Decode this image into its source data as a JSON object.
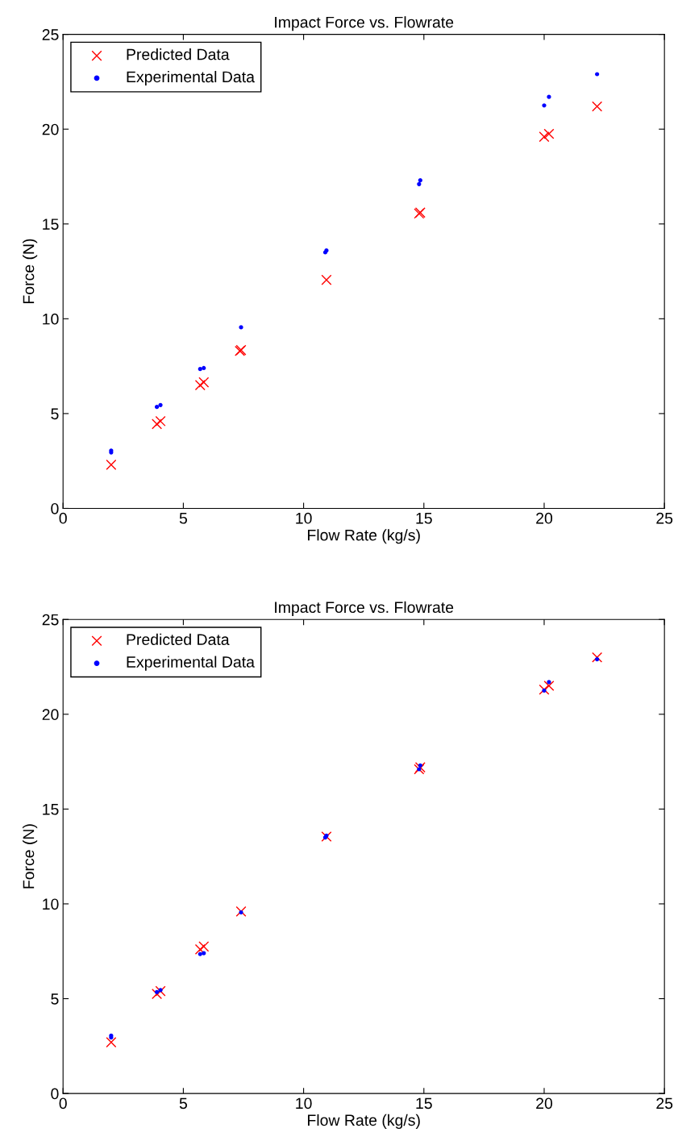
{
  "chart_data": [
    {
      "type": "scatter",
      "title": "Impact Force vs. Flowrate",
      "xlabel": "Flow Rate (kg/s)",
      "ylabel": "Force (N)",
      "xlim": [
        0,
        25
      ],
      "ylim": [
        0,
        25
      ],
      "xticks": [
        0,
        5,
        10,
        15,
        20,
        25
      ],
      "yticks": [
        0,
        5,
        10,
        15,
        20,
        25
      ],
      "legend": "top left",
      "grid": false,
      "series": [
        {
          "name": "Predicted Data",
          "color": "#ff0000",
          "marker": "cross",
          "x": [
            2.0,
            3.9,
            4.05,
            5.7,
            5.85,
            7.35,
            7.4,
            10.95,
            14.8,
            14.85,
            20.0,
            20.2,
            22.2
          ],
          "values": [
            2.3,
            4.45,
            4.6,
            6.5,
            6.65,
            8.3,
            8.35,
            12.05,
            15.55,
            15.6,
            19.6,
            19.75,
            21.2
          ]
        },
        {
          "name": "Experimental Data",
          "color": "#0000ff",
          "marker": "circle",
          "x": [
            2.0,
            2.0,
            3.9,
            4.05,
            5.7,
            5.85,
            7.4,
            10.9,
            10.95,
            14.8,
            14.85,
            20.0,
            20.2,
            22.2
          ],
          "values": [
            2.95,
            3.05,
            5.35,
            5.45,
            7.35,
            7.4,
            9.55,
            13.5,
            13.6,
            17.1,
            17.3,
            21.25,
            21.7,
            22.9
          ]
        }
      ]
    },
    {
      "type": "scatter",
      "title": "Impact Force vs. Flowrate",
      "xlabel": "Flow Rate (kg/s)",
      "ylabel": "Force (N)",
      "xlim": [
        0,
        25
      ],
      "ylim": [
        0,
        25
      ],
      "xticks": [
        0,
        5,
        10,
        15,
        20,
        25
      ],
      "yticks": [
        0,
        5,
        10,
        15,
        20,
        25
      ],
      "legend": "top left",
      "grid": false,
      "series": [
        {
          "name": "Predicted Data",
          "color": "#ff0000",
          "marker": "cross",
          "x": [
            2.0,
            3.9,
            4.05,
            5.7,
            5.85,
            7.4,
            10.95,
            14.8,
            14.85,
            20.0,
            20.2,
            22.2
          ],
          "values": [
            2.7,
            5.25,
            5.4,
            7.6,
            7.75,
            9.6,
            13.55,
            17.1,
            17.2,
            21.3,
            21.5,
            23.0
          ]
        },
        {
          "name": "Experimental Data",
          "color": "#0000ff",
          "marker": "circle",
          "x": [
            2.0,
            2.0,
            3.9,
            4.05,
            5.7,
            5.85,
            7.4,
            10.9,
            10.95,
            14.8,
            14.85,
            20.0,
            20.2,
            22.2
          ],
          "values": [
            2.95,
            3.05,
            5.35,
            5.45,
            7.35,
            7.4,
            9.55,
            13.5,
            13.6,
            17.1,
            17.3,
            21.25,
            21.7,
            22.9
          ]
        }
      ]
    }
  ]
}
